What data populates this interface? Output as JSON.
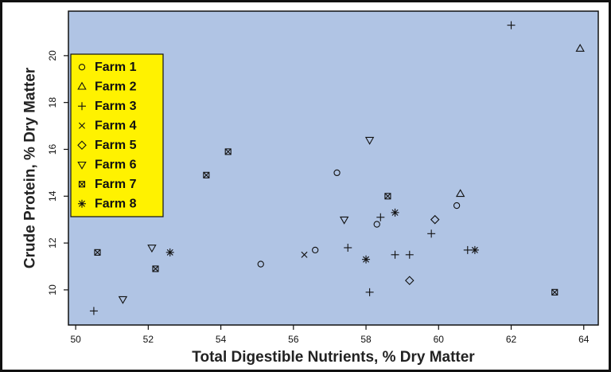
{
  "chart_data": {
    "type": "scatter",
    "title": "",
    "xlabel": "Total Digestible Nutrients, % Dry Matter",
    "ylabel": "Crude Protein, % Dry Matter",
    "xlim": [
      49.8,
      64.4
    ],
    "ylim": [
      8.5,
      21.9
    ],
    "xticks": [
      50,
      52,
      54,
      56,
      58,
      60,
      62,
      64
    ],
    "yticks": [
      10,
      12,
      14,
      16,
      18,
      20
    ],
    "grid": false,
    "legend_position": "top-left",
    "colors": {
      "plot_background": "#b0c4e4",
      "legend_background": "#fff200",
      "frame": "#111111",
      "marker": "#111111"
    },
    "series": [
      {
        "name": "Farm 1",
        "marker": "circle",
        "points": [
          [
            55.1,
            11.1
          ],
          [
            56.6,
            11.7
          ],
          [
            57.2,
            15.0
          ],
          [
            58.3,
            12.8
          ],
          [
            60.5,
            13.6
          ]
        ]
      },
      {
        "name": "Farm 2",
        "marker": "triangle-up",
        "points": [
          [
            60.6,
            14.1
          ],
          [
            63.9,
            20.3
          ]
        ]
      },
      {
        "name": "Farm 3",
        "marker": "plus",
        "points": [
          [
            50.5,
            9.1
          ],
          [
            57.5,
            11.8
          ],
          [
            58.1,
            9.9
          ],
          [
            58.4,
            13.1
          ],
          [
            58.8,
            11.5
          ],
          [
            59.2,
            11.5
          ],
          [
            59.8,
            12.4
          ],
          [
            60.8,
            11.7
          ],
          [
            62.0,
            21.3
          ]
        ]
      },
      {
        "name": "Farm 4",
        "marker": "cross",
        "points": [
          [
            56.3,
            11.5
          ]
        ]
      },
      {
        "name": "Farm 5",
        "marker": "diamond",
        "points": [
          [
            59.2,
            10.4
          ],
          [
            59.9,
            13.0
          ]
        ]
      },
      {
        "name": "Farm 6",
        "marker": "triangle-down",
        "points": [
          [
            51.3,
            9.6
          ],
          [
            52.1,
            11.8
          ],
          [
            57.4,
            13.0
          ],
          [
            58.1,
            16.4
          ]
        ]
      },
      {
        "name": "Farm 7",
        "marker": "boxed-x",
        "points": [
          [
            50.6,
            11.6
          ],
          [
            52.2,
            10.9
          ],
          [
            53.6,
            14.9
          ],
          [
            54.2,
            15.9
          ],
          [
            58.6,
            14.0
          ],
          [
            63.2,
            9.9
          ]
        ]
      },
      {
        "name": "Farm 8",
        "marker": "asterisk",
        "points": [
          [
            52.6,
            11.6
          ],
          [
            58.0,
            11.3
          ],
          [
            58.8,
            13.3
          ],
          [
            61.0,
            11.7
          ]
        ]
      }
    ]
  }
}
